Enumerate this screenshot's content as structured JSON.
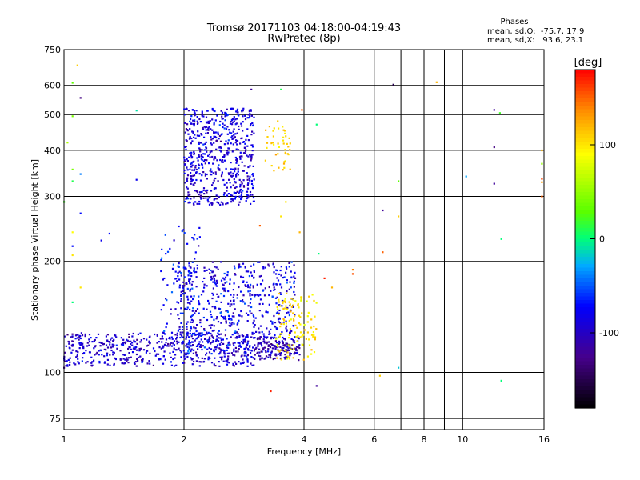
{
  "chart_data": {
    "type": "scatter",
    "title": "Tromsø 20171103 04:18:00-04:19:43",
    "subtitle": "RwPretec (8p)",
    "xlabel": "Frequency [MHz]",
    "ylabel": "Stationary phase Virtual Height [km]",
    "x_scale": "log",
    "y_scale": "log",
    "xlim": [
      1,
      16
    ],
    "ylim": [
      70,
      750
    ],
    "x_ticks": [
      1,
      2,
      4,
      6,
      8,
      10,
      16
    ],
    "x_minor_ticks": [
      7,
      9
    ],
    "y_ticks": [
      75,
      100,
      200,
      300,
      400,
      500,
      600,
      750
    ],
    "grid": true,
    "stats": {
      "heading": "Phases",
      "line1": "mean, sd,O:  -75.7, 17.9",
      "line2": "mean, sd,X:   93.6, 23.1"
    },
    "colorbar": {
      "label": "[deg]",
      "range": [
        -180,
        180
      ],
      "ticks": [
        -100,
        0,
        100
      ],
      "tick_labels": [
        "-100",
        "0",
        "100"
      ],
      "colormap": "rainbow"
    },
    "clusters": [
      {
        "fmin": 1.0,
        "fmax": 3.0,
        "hmin": 104,
        "hmax": 128,
        "phase_mean": -95,
        "phase_sd": 15,
        "count": 520
      },
      {
        "fmin": 1.9,
        "fmax": 3.8,
        "hmin": 112,
        "hmax": 200,
        "phase_mean": -85,
        "phase_sd": 18,
        "count": 620
      },
      {
        "fmin": 1.75,
        "fmax": 2.2,
        "hmin": 120,
        "hmax": 250,
        "phase_mean": -75,
        "phase_sd": 15,
        "count": 80
      },
      {
        "fmin": 3.0,
        "fmax": 3.9,
        "hmin": 108,
        "hmax": 125,
        "phase_mean": -110,
        "phase_sd": 12,
        "count": 140
      },
      {
        "fmin": 3.4,
        "fmax": 4.3,
        "hmin": 108,
        "hmax": 165,
        "phase_mean": 100,
        "phase_sd": 12,
        "count": 120
      },
      {
        "fmin": 2.0,
        "fmax": 3.0,
        "hmin": 285,
        "hmax": 520,
        "phase_mean": -90,
        "phase_sd": 15,
        "count": 620
      },
      {
        "fmin": 3.2,
        "fmax": 3.7,
        "hmin": 350,
        "hmax": 480,
        "phase_mean": 110,
        "phase_sd": 10,
        "count": 45
      }
    ],
    "outliers": [
      {
        "x": 1.08,
        "y": 680,
        "phase": 110
      },
      {
        "x": 1.05,
        "y": 610,
        "phase": 30
      },
      {
        "x": 1.1,
        "y": 555,
        "phase": -130
      },
      {
        "x": 1.05,
        "y": 495,
        "phase": 40
      },
      {
        "x": 1.52,
        "y": 513,
        "phase": -10
      },
      {
        "x": 1.02,
        "y": 420,
        "phase": 60
      },
      {
        "x": 1.05,
        "y": 355,
        "phase": 40
      },
      {
        "x": 1.1,
        "y": 345,
        "phase": -40
      },
      {
        "x": 1.05,
        "y": 330,
        "phase": 10
      },
      {
        "x": 1.52,
        "y": 333,
        "phase": -80
      },
      {
        "x": 1.0,
        "y": 290,
        "phase": 20
      },
      {
        "x": 1.1,
        "y": 270,
        "phase": -70
      },
      {
        "x": 1.05,
        "y": 240,
        "phase": 90
      },
      {
        "x": 1.3,
        "y": 238,
        "phase": -70
      },
      {
        "x": 1.24,
        "y": 228,
        "phase": -80
      },
      {
        "x": 1.05,
        "y": 220,
        "phase": -70
      },
      {
        "x": 1.05,
        "y": 208,
        "phase": 100
      },
      {
        "x": 1.05,
        "y": 155,
        "phase": 0
      },
      {
        "x": 1.1,
        "y": 170,
        "phase": 100
      },
      {
        "x": 1.0,
        "y": 103,
        "phase": -120
      },
      {
        "x": 2.95,
        "y": 585,
        "phase": -120
      },
      {
        "x": 3.5,
        "y": 585,
        "phase": 10
      },
      {
        "x": 3.95,
        "y": 515,
        "phase": 150
      },
      {
        "x": 4.3,
        "y": 470,
        "phase": 0
      },
      {
        "x": 3.6,
        "y": 290,
        "phase": 100
      },
      {
        "x": 3.1,
        "y": 250,
        "phase": 150
      },
      {
        "x": 3.5,
        "y": 265,
        "phase": 100
      },
      {
        "x": 3.9,
        "y": 240,
        "phase": 120
      },
      {
        "x": 4.35,
        "y": 210,
        "phase": 0
      },
      {
        "x": 4.5,
        "y": 180,
        "phase": 170
      },
      {
        "x": 5.3,
        "y": 190,
        "phase": 140
      },
      {
        "x": 5.3,
        "y": 185,
        "phase": 155
      },
      {
        "x": 4.7,
        "y": 170,
        "phase": 120
      },
      {
        "x": 3.3,
        "y": 89,
        "phase": 170
      },
      {
        "x": 4.3,
        "y": 92,
        "phase": -120
      },
      {
        "x": 6.7,
        "y": 603,
        "phase": -150
      },
      {
        "x": 8.6,
        "y": 612,
        "phase": 120
      },
      {
        "x": 6.9,
        "y": 330,
        "phase": 30
      },
      {
        "x": 6.3,
        "y": 275,
        "phase": -120
      },
      {
        "x": 6.9,
        "y": 265,
        "phase": 110
      },
      {
        "x": 6.3,
        "y": 212,
        "phase": 150
      },
      {
        "x": 6.2,
        "y": 98,
        "phase": 110
      },
      {
        "x": 6.9,
        "y": 103,
        "phase": -20
      },
      {
        "x": 10.2,
        "y": 340,
        "phase": -30
      },
      {
        "x": 12.0,
        "y": 515,
        "phase": -120
      },
      {
        "x": 12.4,
        "y": 505,
        "phase": 20
      },
      {
        "x": 12.0,
        "y": 408,
        "phase": -130
      },
      {
        "x": 12.0,
        "y": 325,
        "phase": -120
      },
      {
        "x": 12.5,
        "y": 230,
        "phase": 0
      },
      {
        "x": 12.5,
        "y": 95,
        "phase": 0
      },
      {
        "x": 15.8,
        "y": 400,
        "phase": 120
      },
      {
        "x": 15.8,
        "y": 368,
        "phase": 50
      },
      {
        "x": 15.8,
        "y": 335,
        "phase": 160
      },
      {
        "x": 15.8,
        "y": 328,
        "phase": 130
      },
      {
        "x": 15.8,
        "y": 300,
        "phase": 150
      }
    ]
  }
}
